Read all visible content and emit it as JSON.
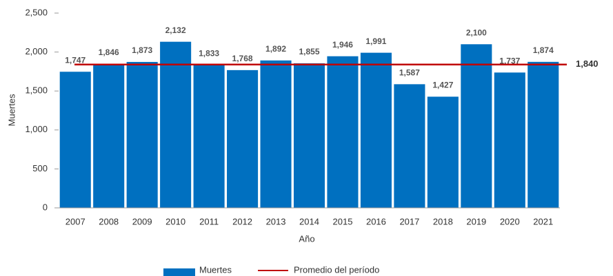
{
  "chart_data": {
    "type": "bar",
    "xlabel": "Año",
    "ylabel": "Muertes",
    "categories": [
      "2007",
      "2008",
      "2009",
      "2010",
      "2011",
      "2012",
      "2013",
      "2014",
      "2015",
      "2016",
      "2017",
      "2018",
      "2019",
      "2020",
      "2021"
    ],
    "series": [
      {
        "name": "Muertes",
        "color": "#0070c0",
        "values": [
          1747,
          1846,
          1873,
          2132,
          1833,
          1768,
          1892,
          1855,
          1946,
          1991,
          1587,
          1427,
          2100,
          1737,
          1874
        ],
        "value_labels": [
          "1,747",
          "1,846",
          "1,873",
          "2,132",
          "1,833",
          "1,768",
          "1,892",
          "1,855",
          "1,946",
          "1,991",
          "1,587",
          "1,427",
          "2,100",
          "1,737",
          "1,874"
        ]
      }
    ],
    "reference_line": {
      "name": "Promedio del período",
      "value": 1840,
      "label": "1,840",
      "color": "#c00000"
    },
    "ylim": [
      0,
      2500
    ],
    "yticks": [
      0,
      500,
      {
        "value": 1000,
        "label": "1,000"
      },
      {
        "value": 1500,
        "label": "1,500"
      },
      {
        "value": 2000,
        "label": "2,000"
      },
      {
        "value": 2500,
        "label": "2,500"
      }
    ]
  }
}
